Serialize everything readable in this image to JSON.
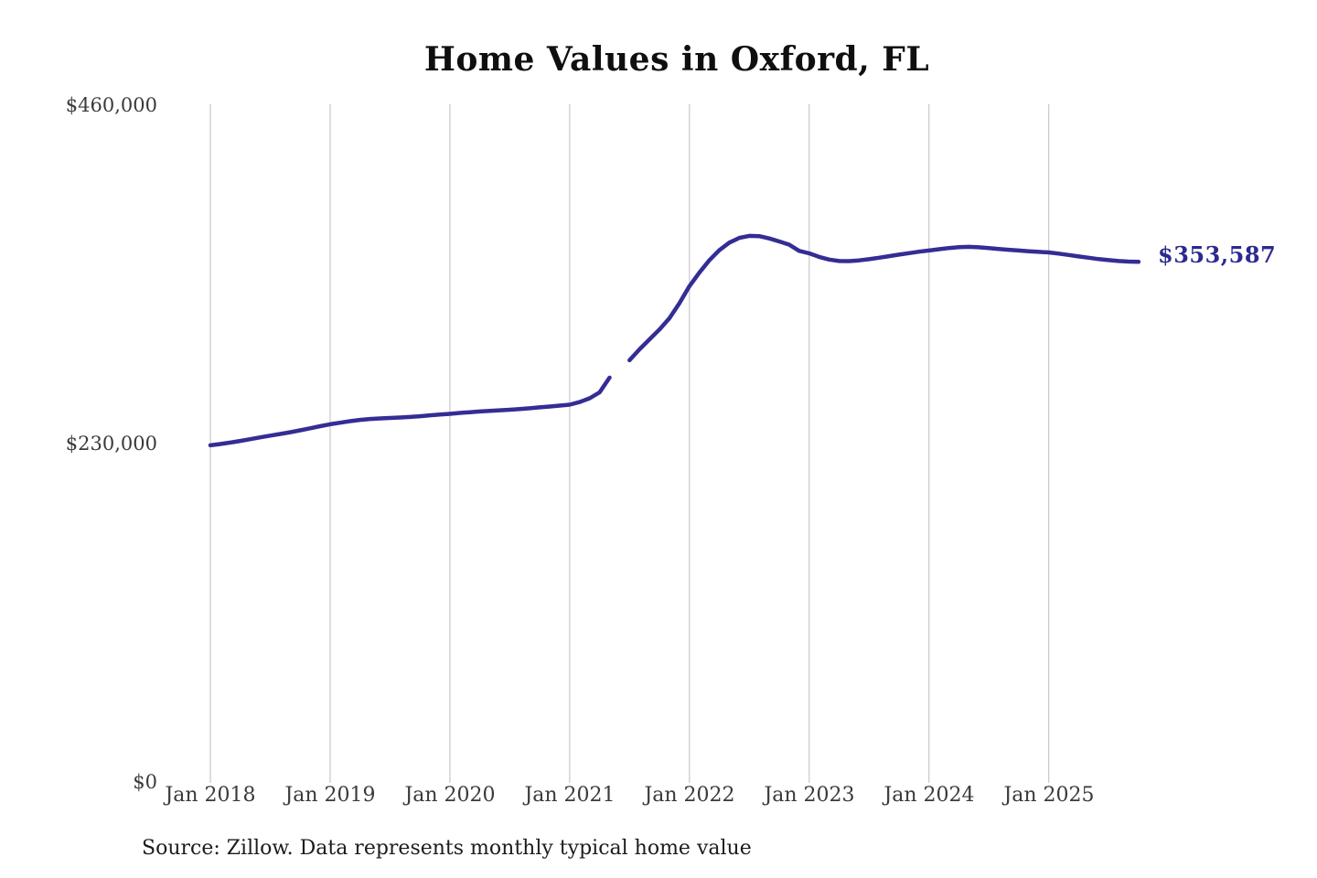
{
  "chart": {
    "title": "Home Values in Oxford, FL",
    "source_note": "Source: Zillow. Data represents monthly typical home value",
    "end_label": "$353,587",
    "colors": {
      "line": "#332d94",
      "end_label_text": "#2c2a8e",
      "gridline": "#cccccc",
      "tick_text": "#3a3a3a",
      "title_text": "#0f0f0f",
      "source_text": "#1c1c1c",
      "background": "#ffffff"
    }
  },
  "chart_data": {
    "type": "line",
    "title": "Home Values in Oxford, FL",
    "xlabel": "",
    "ylabel": "",
    "ylim": [
      0,
      460000
    ],
    "grid": "vertical-only",
    "legend": "none",
    "x_tick_labels": [
      "Jan 2018",
      "Jan 2019",
      "Jan 2020",
      "Jan 2021",
      "Jan 2022",
      "Jan 2023",
      "Jan 2024",
      "Jan 2025"
    ],
    "y_ticks": [
      {
        "label": "$0",
        "value": 0
      },
      {
        "label": "$230,000",
        "value": 230000
      },
      {
        "label": "$460,000",
        "value": 460000
      }
    ],
    "final_value": 353587,
    "final_value_label": "$353,587",
    "gap_month": "2021-06",
    "series": [
      {
        "name": "Monthly typical home value",
        "start_month": "2018-01",
        "frequency": "monthly",
        "values": [
          228800,
          229700,
          230700,
          231800,
          233000,
          234200,
          235400,
          236500,
          237700,
          239000,
          240400,
          241800,
          243100,
          244200,
          245200,
          246100,
          246700,
          247100,
          247400,
          247700,
          248100,
          248600,
          249200,
          249700,
          250200,
          250800,
          251300,
          251800,
          252200,
          252600,
          253000,
          253500,
          254000,
          254600,
          255200,
          255800,
          256400,
          258200,
          260800,
          264800,
          274800,
          null,
          286600,
          294000,
          300800,
          307600,
          315200,
          325400,
          337000,
          346200,
          354600,
          361400,
          366600,
          369800,
          371200,
          371000,
          369400,
          367400,
          365200,
          361000,
          359300,
          356900,
          355100,
          354100,
          354000,
          354500,
          355300,
          356300,
          357400,
          358400,
          359400,
          360400,
          361200,
          362100,
          362900,
          363500,
          363700,
          363400,
          362900,
          362300,
          361700,
          361200,
          360700,
          360300,
          359900,
          359100,
          358200,
          357200,
          356300,
          355400,
          354700,
          354100,
          353700,
          353587
        ]
      }
    ]
  }
}
